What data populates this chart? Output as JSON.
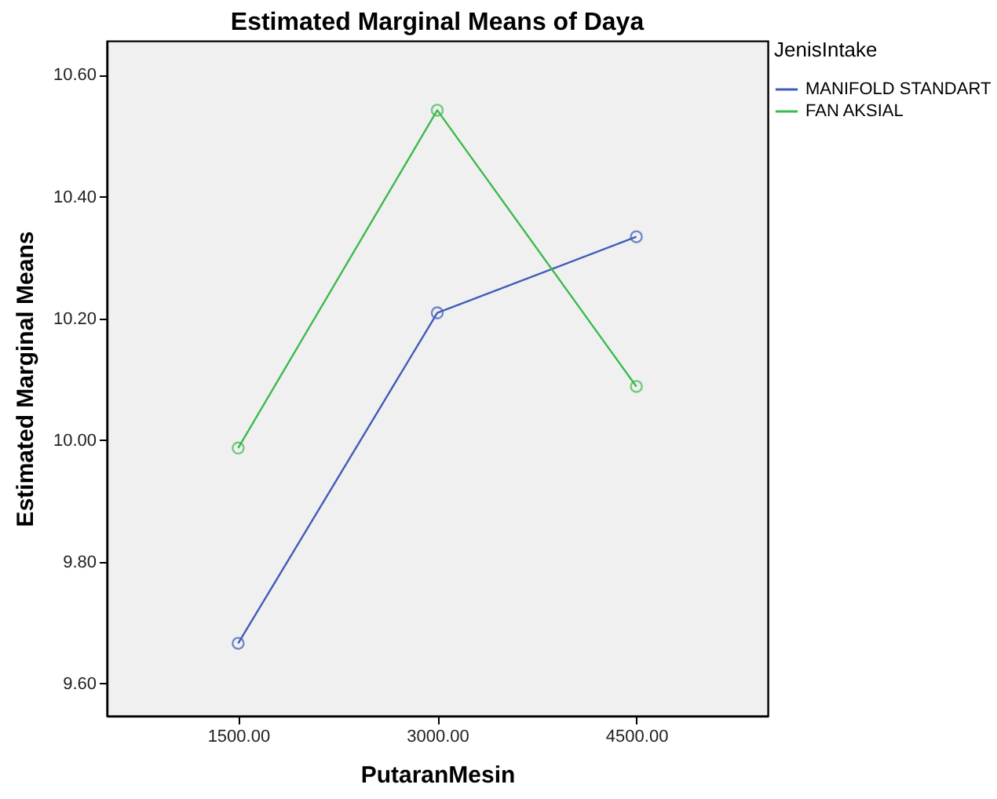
{
  "chart_data": {
    "type": "line",
    "title": "Estimated Marginal Means of Daya",
    "xlabel": "PutaranMesin",
    "ylabel": "Estimated Marginal Means",
    "legend_title": "JenisIntake",
    "categories": [
      "1500.00",
      "3000.00",
      "4500.00"
    ],
    "series": [
      {
        "name": "MANIFOLD STANDART",
        "color": "#3f5cb8",
        "values": [
          9.666,
          10.209,
          10.334
        ]
      },
      {
        "name": "FAN AKSIAL",
        "color": "#3cba4b",
        "values": [
          9.987,
          10.542,
          10.088
        ]
      }
    ],
    "ylim": [
      9.547,
      10.656
    ],
    "yticks": [
      {
        "value": 9.6,
        "label": "9.60"
      },
      {
        "value": 9.8,
        "label": "9.80"
      },
      {
        "value": 10.0,
        "label": "10.00"
      },
      {
        "value": 10.2,
        "label": "10.20"
      },
      {
        "value": 10.4,
        "label": "10.40"
      },
      {
        "value": 10.6,
        "label": "10.60"
      }
    ],
    "grid": false,
    "legend": "top right",
    "marker": "circle",
    "line_style": "solid"
  }
}
